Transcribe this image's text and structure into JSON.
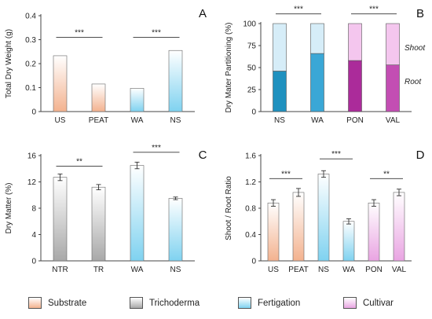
{
  "colors": {
    "substrate": [
      "#ffffff",
      "#f3b28f"
    ],
    "trichoderma": [
      "#ffffff",
      "#a8a8a8"
    ],
    "fertigation": [
      "#ffffff",
      "#7fd2f0"
    ],
    "cultivar": [
      "#ffffff",
      "#e9a4e2"
    ],
    "partition_root": {
      "NS": "#1f91bf",
      "WA": "#3aa7d6",
      "PON": "#ab2b9a",
      "VAL": "#c34eb3"
    },
    "partition_shoot": {
      "NS": "#d6edf8",
      "WA": "#d6edf8",
      "PON": "#f4c6ee",
      "VAL": "#f4c6ee"
    }
  },
  "legend": [
    {
      "label": "Substrate",
      "color_key": "substrate"
    },
    {
      "label": "Trichoderma",
      "color_key": "trichoderma"
    },
    {
      "label": "Fertigation",
      "color_key": "fertigation"
    },
    {
      "label": "Cultivar",
      "color_key": "cultivar"
    }
  ],
  "chart_data": [
    {
      "panel": "A",
      "type": "bar",
      "ylabel": "Total Dry Weight (g)",
      "ylim": [
        0,
        0.4
      ],
      "yticks": [
        0,
        0.1,
        0.2,
        0.3,
        0.4
      ],
      "ytick_labels": [
        "0",
        "0.1",
        "0.2",
        "0.3",
        "0.4"
      ],
      "categories": [
        "US",
        "PEAT",
        "WA",
        "NS"
      ],
      "values": [
        0.233,
        0.115,
        0.097,
        0.255
      ],
      "color_keys": [
        "substrate",
        "substrate",
        "fertigation",
        "fertigation"
      ],
      "significance": [
        {
          "from": 0,
          "to": 1,
          "label": "***",
          "y": 0.31
        },
        {
          "from": 2,
          "to": 3,
          "label": "***",
          "y": 0.31
        }
      ]
    },
    {
      "panel": "B",
      "type": "stacked-bar",
      "ylabel": "Dry Mater Partitioning (%)",
      "ylim": [
        0,
        100
      ],
      "yticks": [
        0,
        25,
        50,
        75,
        100
      ],
      "ytick_labels": [
        "0",
        "25",
        "50",
        "75",
        "100"
      ],
      "categories": [
        "NS",
        "WA",
        "PON",
        "VAL"
      ],
      "series": [
        {
          "name": "Root",
          "values": [
            46,
            66,
            58,
            53
          ]
        },
        {
          "name": "Shoot",
          "values": [
            54,
            34,
            42,
            47
          ]
        }
      ],
      "annotations": [
        "Shoot",
        "Root"
      ],
      "significance": [
        {
          "from": 0,
          "to": 1,
          "label": "***",
          "y": 111
        },
        {
          "from": 2,
          "to": 3,
          "label": "***",
          "y": 111
        }
      ]
    },
    {
      "panel": "C",
      "type": "bar",
      "ylabel": "Dry Matter (%)",
      "ylim": [
        0,
        16
      ],
      "yticks": [
        0,
        4,
        8,
        12,
        16
      ],
      "ytick_labels": [
        "0",
        "4",
        "8",
        "12",
        "16"
      ],
      "categories": [
        "NTR",
        "TR",
        "WA",
        "NS"
      ],
      "values": [
        12.7,
        11.2,
        14.5,
        9.5
      ],
      "errors": [
        0.5,
        0.4,
        0.5,
        0.2
      ],
      "color_keys": [
        "trichoderma",
        "trichoderma",
        "fertigation",
        "fertigation"
      ],
      "significance": [
        {
          "from": 0,
          "to": 1,
          "label": "**",
          "y": 14.4
        },
        {
          "from": 2,
          "to": 3,
          "label": "***",
          "y": 16.5
        }
      ]
    },
    {
      "panel": "D",
      "type": "bar",
      "ylabel": "Shoot / Root Ratio",
      "ylim": [
        0,
        1.6
      ],
      "yticks": [
        0,
        0.4,
        0.8,
        1.2,
        1.6
      ],
      "ytick_labels": [
        "0",
        "0.4",
        "0.8",
        "1.2",
        "1.6"
      ],
      "categories": [
        "US",
        "PEAT",
        "NS",
        "WA",
        "PON",
        "VAL"
      ],
      "values": [
        0.88,
        1.04,
        1.32,
        0.6,
        0.88,
        1.04
      ],
      "errors": [
        0.05,
        0.06,
        0.05,
        0.04,
        0.05,
        0.05
      ],
      "color_keys": [
        "substrate",
        "substrate",
        "fertigation",
        "fertigation",
        "cultivar",
        "cultivar"
      ],
      "significance": [
        {
          "from": 0,
          "to": 1,
          "label": "***",
          "y": 1.25
        },
        {
          "from": 2,
          "to": 3,
          "label": "***",
          "y": 1.55
        },
        {
          "from": 4,
          "to": 5,
          "label": "**",
          "y": 1.25
        }
      ]
    }
  ]
}
